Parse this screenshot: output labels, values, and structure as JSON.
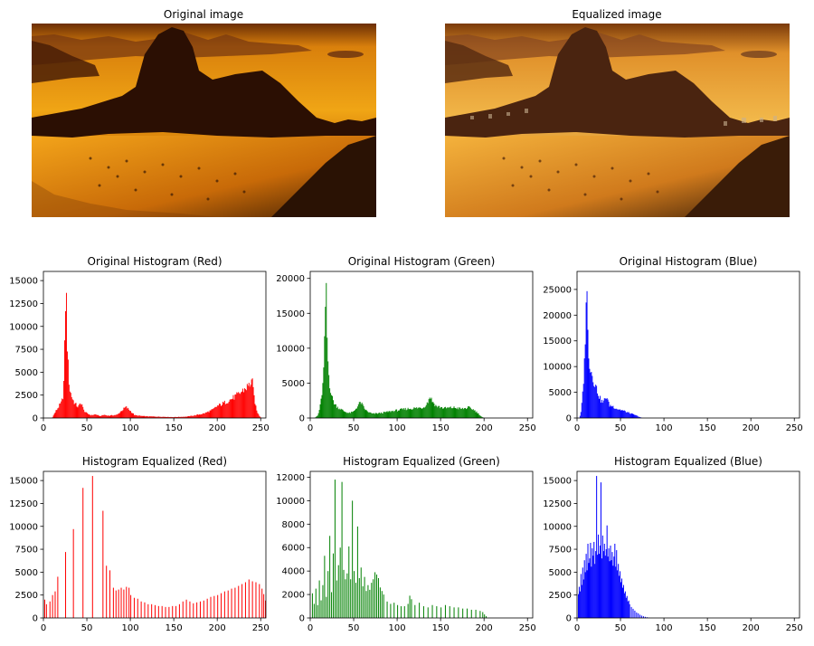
{
  "figure": {
    "image_titles": [
      "Original image",
      "Equalized image"
    ]
  },
  "chart_data": [
    {
      "type": "bar",
      "title": "Original Histogram (Red)",
      "color": "#ff0000",
      "xlim": [
        0,
        256
      ],
      "ylim": [
        0,
        16000
      ],
      "xticks": [
        "0",
        "50",
        "100",
        "150",
        "200",
        "250"
      ],
      "yticks": [
        "0",
        "2500",
        "5000",
        "7500",
        "10000",
        "12500",
        "15000"
      ],
      "grid": false,
      "profile": [
        [
          0,
          0
        ],
        [
          10,
          0
        ],
        [
          14,
          700
        ],
        [
          18,
          1300
        ],
        [
          21,
          1700
        ],
        [
          23,
          2600
        ],
        [
          24,
          5200
        ],
        [
          25,
          9800
        ],
        [
          26,
          15600
        ],
        [
          27,
          9700
        ],
        [
          28,
          6500
        ],
        [
          30,
          3200
        ],
        [
          33,
          2200
        ],
        [
          36,
          1600
        ],
        [
          40,
          1200
        ],
        [
          44,
          1700
        ],
        [
          46,
          900
        ],
        [
          50,
          500
        ],
        [
          55,
          300
        ],
        [
          60,
          400
        ],
        [
          65,
          200
        ],
        [
          70,
          350
        ],
        [
          75,
          250
        ],
        [
          85,
          350
        ],
        [
          90,
          800
        ],
        [
          95,
          1200
        ],
        [
          100,
          800
        ],
        [
          105,
          300
        ],
        [
          115,
          200
        ],
        [
          130,
          150
        ],
        [
          150,
          100
        ],
        [
          165,
          150
        ],
        [
          175,
          300
        ],
        [
          185,
          500
        ],
        [
          195,
          900
        ],
        [
          200,
          1300
        ],
        [
          205,
          1500
        ],
        [
          215,
          2000
        ],
        [
          225,
          2600
        ],
        [
          232,
          3200
        ],
        [
          237,
          3600
        ],
        [
          240,
          4200
        ],
        [
          242,
          2600
        ],
        [
          245,
          900
        ],
        [
          248,
          300
        ],
        [
          251,
          0
        ],
        [
          256,
          0
        ]
      ]
    },
    {
      "type": "bar",
      "title": "Original Histogram (Green)",
      "color": "#008000",
      "xlim": [
        0,
        256
      ],
      "ylim": [
        0,
        21000
      ],
      "xticks": [
        "0",
        "50",
        "100",
        "150",
        "200",
        "250"
      ],
      "yticks": [
        "0",
        "5000",
        "10000",
        "15000",
        "20000"
      ],
      "grid": false,
      "profile": [
        [
          0,
          0
        ],
        [
          5,
          0
        ],
        [
          9,
          400
        ],
        [
          12,
          2000
        ],
        [
          15,
          5200
        ],
        [
          17,
          12000
        ],
        [
          18,
          20300
        ],
        [
          19,
          14000
        ],
        [
          20,
          9000
        ],
        [
          22,
          5200
        ],
        [
          25,
          3000
        ],
        [
          28,
          2000
        ],
        [
          32,
          1500
        ],
        [
          36,
          1200
        ],
        [
          40,
          900
        ],
        [
          45,
          700
        ],
        [
          50,
          900
        ],
        [
          55,
          1800
        ],
        [
          58,
          2300
        ],
        [
          62,
          1400
        ],
        [
          66,
          900
        ],
        [
          72,
          600
        ],
        [
          80,
          700
        ],
        [
          90,
          900
        ],
        [
          100,
          1100
        ],
        [
          110,
          1300
        ],
        [
          120,
          1400
        ],
        [
          130,
          1500
        ],
        [
          135,
          2200
        ],
        [
          138,
          3200
        ],
        [
          140,
          2500
        ],
        [
          145,
          1700
        ],
        [
          155,
          1400
        ],
        [
          165,
          1500
        ],
        [
          175,
          1300
        ],
        [
          182,
          1500
        ],
        [
          188,
          1200
        ],
        [
          193,
          700
        ],
        [
          197,
          200
        ],
        [
          200,
          0
        ],
        [
          256,
          0
        ]
      ]
    },
    {
      "type": "bar",
      "title": "Original Histogram (Blue)",
      "color": "#0000ff",
      "xlim": [
        0,
        256
      ],
      "ylim": [
        0,
        28500
      ],
      "xticks": [
        "0",
        "50",
        "100",
        "150",
        "200",
        "250"
      ],
      "yticks": [
        "0",
        "5000",
        "10000",
        "15000",
        "20000",
        "25000"
      ],
      "grid": false,
      "profile": [
        [
          0,
          0
        ],
        [
          3,
          0
        ],
        [
          5,
          1500
        ],
        [
          7,
          6000
        ],
        [
          9,
          12000
        ],
        [
          10,
          21000
        ],
        [
          11,
          27000
        ],
        [
          12,
          19000
        ],
        [
          13,
          14000
        ],
        [
          15,
          10000
        ],
        [
          18,
          8000
        ],
        [
          21,
          6500
        ],
        [
          24,
          5000
        ],
        [
          27,
          3500
        ],
        [
          30,
          3000
        ],
        [
          34,
          4300
        ],
        [
          37,
          2500
        ],
        [
          41,
          2300
        ],
        [
          46,
          1800
        ],
        [
          52,
          1500
        ],
        [
          58,
          1100
        ],
        [
          63,
          800
        ],
        [
          68,
          500
        ],
        [
          72,
          200
        ],
        [
          75,
          0
        ],
        [
          256,
          0
        ]
      ]
    },
    {
      "type": "bar",
      "title": "Histogram Equalized (Red)",
      "color": "#ff0000",
      "xlim": [
        0,
        256
      ],
      "ylim": [
        0,
        16000
      ],
      "xticks": [
        "0",
        "50",
        "100",
        "150",
        "200",
        "250"
      ],
      "yticks": [
        "0",
        "2500",
        "5000",
        "7500",
        "10000",
        "12500",
        "15000"
      ],
      "grid": false,
      "spikes": [
        [
          1,
          2000
        ],
        [
          3,
          1500
        ],
        [
          7,
          1800
        ],
        [
          10,
          2500
        ],
        [
          13,
          2900
        ],
        [
          16,
          4500
        ],
        [
          25,
          7200
        ],
        [
          34,
          9700
        ],
        [
          45,
          14200
        ],
        [
          56,
          15500
        ],
        [
          68,
          11700
        ],
        [
          72,
          5700
        ],
        [
          76,
          5200
        ],
        [
          80,
          3300
        ],
        [
          83,
          3000
        ],
        [
          86,
          3100
        ],
        [
          89,
          3300
        ],
        [
          92,
          3100
        ],
        [
          95,
          3400
        ],
        [
          98,
          3300
        ],
        [
          100,
          2500
        ],
        [
          104,
          2200
        ],
        [
          108,
          2100
        ],
        [
          112,
          1800
        ],
        [
          116,
          1700
        ],
        [
          120,
          1500
        ],
        [
          124,
          1500
        ],
        [
          128,
          1400
        ],
        [
          132,
          1300
        ],
        [
          136,
          1300
        ],
        [
          140,
          1200
        ],
        [
          144,
          1200
        ],
        [
          148,
          1300
        ],
        [
          152,
          1300
        ],
        [
          156,
          1500
        ],
        [
          160,
          1800
        ],
        [
          164,
          2000
        ],
        [
          168,
          1800
        ],
        [
          172,
          1600
        ],
        [
          176,
          1700
        ],
        [
          180,
          1800
        ],
        [
          184,
          1900
        ],
        [
          188,
          2100
        ],
        [
          192,
          2300
        ],
        [
          196,
          2400
        ],
        [
          200,
          2500
        ],
        [
          204,
          2700
        ],
        [
          208,
          2900
        ],
        [
          212,
          3000
        ],
        [
          216,
          3200
        ],
        [
          220,
          3300
        ],
        [
          224,
          3500
        ],
        [
          228,
          3700
        ],
        [
          232,
          3900
        ],
        [
          236,
          4200
        ],
        [
          240,
          4000
        ],
        [
          244,
          3900
        ],
        [
          248,
          3700
        ],
        [
          251,
          3200
        ],
        [
          253,
          2600
        ],
        [
          255,
          1900
        ]
      ]
    },
    {
      "type": "bar",
      "title": "Histogram Equalized (Green)",
      "color": "#008000",
      "xlim": [
        0,
        256
      ],
      "ylim": [
        0,
        12500
      ],
      "xticks": [
        "0",
        "50",
        "100",
        "150",
        "200",
        "250"
      ],
      "yticks": [
        "0",
        "2000",
        "4000",
        "6000",
        "8000",
        "10000",
        "12000"
      ],
      "grid": false,
      "spikes": [
        [
          2,
          2100
        ],
        [
          4,
          1200
        ],
        [
          6,
          2500
        ],
        [
          8,
          1100
        ],
        [
          10,
          3200
        ],
        [
          12,
          1500
        ],
        [
          14,
          2800
        ],
        [
          16,
          5300
        ],
        [
          18,
          1800
        ],
        [
          20,
          4000
        ],
        [
          22,
          7000
        ],
        [
          24,
          2200
        ],
        [
          26,
          5500
        ],
        [
          28,
          11800
        ],
        [
          30,
          3200
        ],
        [
          32,
          4500
        ],
        [
          34,
          6000
        ],
        [
          36,
          11600
        ],
        [
          38,
          4100
        ],
        [
          40,
          3300
        ],
        [
          42,
          3800
        ],
        [
          44,
          6100
        ],
        [
          46,
          3300
        ],
        [
          48,
          10000
        ],
        [
          50,
          4000
        ],
        [
          52,
          3000
        ],
        [
          54,
          7800
        ],
        [
          56,
          3400
        ],
        [
          58,
          4300
        ],
        [
          60,
          2700
        ],
        [
          62,
          3500
        ],
        [
          64,
          2300
        ],
        [
          66,
          2800
        ],
        [
          68,
          2400
        ],
        [
          70,
          3000
        ],
        [
          72,
          3300
        ],
        [
          74,
          3900
        ],
        [
          76,
          3700
        ],
        [
          78,
          3400
        ],
        [
          80,
          2600
        ],
        [
          82,
          2300
        ],
        [
          84,
          2000
        ],
        [
          88,
          1400
        ],
        [
          92,
          1200
        ],
        [
          96,
          1300
        ],
        [
          100,
          1100
        ],
        [
          104,
          1000
        ],
        [
          108,
          1000
        ],
        [
          112,
          1200
        ],
        [
          114,
          1900
        ],
        [
          116,
          1600
        ],
        [
          120,
          1100
        ],
        [
          125,
          1300
        ],
        [
          130,
          1000
        ],
        [
          135,
          900
        ],
        [
          140,
          1100
        ],
        [
          145,
          1000
        ],
        [
          150,
          900
        ],
        [
          155,
          1100
        ],
        [
          160,
          1000
        ],
        [
          165,
          900
        ],
        [
          170,
          900
        ],
        [
          175,
          800
        ],
        [
          180,
          800
        ],
        [
          185,
          700
        ],
        [
          190,
          700
        ],
        [
          195,
          600
        ],
        [
          198,
          500
        ],
        [
          200,
          300
        ],
        [
          202,
          150
        ]
      ]
    },
    {
      "type": "bar",
      "title": "Histogram Equalized (Blue)",
      "color": "#0000ff",
      "xlim": [
        0,
        256
      ],
      "ylim": [
        0,
        16000
      ],
      "xticks": [
        "0",
        "50",
        "100",
        "150",
        "200",
        "250"
      ],
      "yticks": [
        "0",
        "2500",
        "5000",
        "7500",
        "10000",
        "12500",
        "15000"
      ],
      "grid": false,
      "spikes": [
        [
          1,
          2600
        ],
        [
          2,
          3400
        ],
        [
          3,
          2900
        ],
        [
          4,
          4800
        ],
        [
          5,
          3600
        ],
        [
          6,
          5500
        ],
        [
          7,
          4200
        ],
        [
          8,
          6300
        ],
        [
          9,
          5000
        ],
        [
          10,
          7000
        ],
        [
          11,
          5200
        ],
        [
          12,
          8100
        ],
        [
          13,
          6000
        ],
        [
          14,
          6500
        ],
        [
          15,
          8200
        ],
        [
          16,
          5600
        ],
        [
          17,
          7600
        ],
        [
          18,
          6800
        ],
        [
          19,
          8300
        ],
        [
          20,
          5900
        ],
        [
          21,
          7300
        ],
        [
          22,
          15500
        ],
        [
          23,
          6900
        ],
        [
          24,
          9100
        ],
        [
          25,
          7000
        ],
        [
          26,
          7900
        ],
        [
          27,
          14800
        ],
        [
          28,
          6500
        ],
        [
          29,
          9000
        ],
        [
          30,
          7300
        ],
        [
          31,
          8100
        ],
        [
          32,
          6800
        ],
        [
          33,
          7500
        ],
        [
          34,
          10100
        ],
        [
          35,
          6700
        ],
        [
          36,
          7600
        ],
        [
          37,
          6200
        ],
        [
          38,
          7900
        ],
        [
          39,
          6300
        ],
        [
          40,
          7200
        ],
        [
          41,
          5700
        ],
        [
          42,
          6700
        ],
        [
          43,
          8100
        ],
        [
          44,
          5600
        ],
        [
          45,
          7400
        ],
        [
          46,
          5200
        ],
        [
          47,
          5900
        ],
        [
          48,
          4600
        ],
        [
          49,
          5100
        ],
        [
          50,
          3900
        ],
        [
          51,
          4300
        ],
        [
          52,
          3300
        ],
        [
          53,
          3600
        ],
        [
          54,
          2700
        ],
        [
          55,
          2900
        ],
        [
          56,
          2200
        ],
        [
          57,
          2400
        ],
        [
          58,
          1800
        ],
        [
          59,
          1900
        ],
        [
          60,
          1500
        ],
        [
          62,
          1200
        ],
        [
          64,
          1000
        ],
        [
          66,
          800
        ],
        [
          68,
          600
        ],
        [
          70,
          500
        ],
        [
          72,
          350
        ],
        [
          74,
          250
        ],
        [
          76,
          180
        ],
        [
          78,
          120
        ],
        [
          80,
          80
        ],
        [
          82,
          50
        ]
      ]
    }
  ]
}
